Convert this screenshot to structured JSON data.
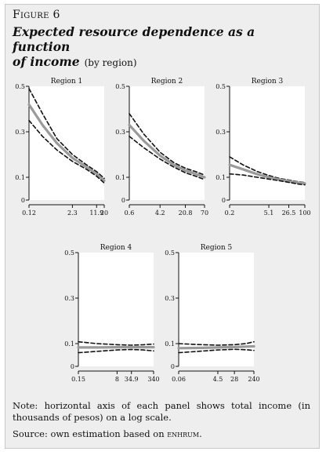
{
  "figure": {
    "label": "Figure 6",
    "title_line1": "Expected resource dependence as a function",
    "title_line2": "of income",
    "title_sub": "(by region)",
    "note": "Note: horizontal axis of each panel shows total income (in thousands of pesos) on a log scale.",
    "source_prefix": "Source: own estimation based on ",
    "source_name": "enhrum",
    "source_suffix": "."
  },
  "chart_data": [
    {
      "type": "line",
      "title": "Region 1",
      "x_scale": "log",
      "xlim": [
        0.12,
        20
      ],
      "xticks": [
        0.12,
        2.3,
        11.9,
        20
      ],
      "xtick_labels": [
        "0.12",
        "2.3",
        "11.9",
        "20"
      ],
      "ylim": [
        0,
        0.5
      ],
      "yticks": [
        0,
        0.1,
        0.3,
        0.5
      ],
      "ytick_labels": [
        "0",
        "0.1",
        "0.3",
        "0.5"
      ],
      "series": [
        {
          "style": "upper-ci",
          "x": [
            0.12,
            0.3,
            0.8,
            2.3,
            6,
            11.9,
            20
          ],
          "y": [
            0.49,
            0.38,
            0.27,
            0.2,
            0.155,
            0.125,
            0.095
          ]
        },
        {
          "style": "estimate",
          "x": [
            0.12,
            0.3,
            0.8,
            2.3,
            6,
            11.9,
            20
          ],
          "y": [
            0.42,
            0.33,
            0.25,
            0.185,
            0.145,
            0.115,
            0.085
          ]
        },
        {
          "style": "lower-ci",
          "x": [
            0.12,
            0.3,
            0.8,
            2.3,
            6,
            11.9,
            20
          ],
          "y": [
            0.35,
            0.28,
            0.22,
            0.17,
            0.135,
            0.105,
            0.075
          ]
        }
      ]
    },
    {
      "type": "line",
      "title": "Region 2",
      "x_scale": "log",
      "xlim": [
        0.6,
        70
      ],
      "xticks": [
        0.6,
        4.2,
        20.8,
        70
      ],
      "xtick_labels": [
        "0.6",
        "4.2",
        "20.8",
        "70"
      ],
      "ylim": [
        0,
        0.5
      ],
      "yticks": [
        0,
        0.1,
        0.3,
        0.5
      ],
      "ytick_labels": [
        "0",
        "0.1",
        "0.3",
        "0.5"
      ],
      "series": [
        {
          "style": "upper-ci",
          "x": [
            0.6,
            1.5,
            4.2,
            10,
            20.8,
            40,
            70
          ],
          "y": [
            0.38,
            0.29,
            0.21,
            0.165,
            0.14,
            0.125,
            0.11
          ]
        },
        {
          "style": "estimate",
          "x": [
            0.6,
            1.5,
            4.2,
            10,
            20.8,
            40,
            70
          ],
          "y": [
            0.33,
            0.26,
            0.195,
            0.155,
            0.13,
            0.115,
            0.1
          ]
        },
        {
          "style": "lower-ci",
          "x": [
            0.6,
            1.5,
            4.2,
            10,
            20.8,
            40,
            70
          ],
          "y": [
            0.28,
            0.23,
            0.18,
            0.145,
            0.12,
            0.105,
            0.09
          ]
        }
      ]
    },
    {
      "type": "line",
      "title": "Region 3",
      "x_scale": "log",
      "xlim": [
        0.2,
        100
      ],
      "xticks": [
        0.2,
        5.1,
        26.5,
        100
      ],
      "xtick_labels": [
        "0.2",
        "5.1",
        "26.5",
        "100"
      ],
      "ylim": [
        0,
        0.5
      ],
      "yticks": [
        0,
        0.1,
        0.3,
        0.5
      ],
      "ytick_labels": [
        "0",
        "0.1",
        "0.3",
        "0.5"
      ],
      "series": [
        {
          "style": "upper-ci",
          "x": [
            0.2,
            0.6,
            2,
            5.1,
            12,
            26.5,
            60,
            100
          ],
          "y": [
            0.19,
            0.155,
            0.125,
            0.108,
            0.095,
            0.088,
            0.08,
            0.077
          ]
        },
        {
          "style": "estimate",
          "x": [
            0.2,
            0.6,
            2,
            5.1,
            12,
            26.5,
            60,
            100
          ],
          "y": [
            0.155,
            0.135,
            0.113,
            0.1,
            0.09,
            0.083,
            0.076,
            0.073
          ]
        },
        {
          "style": "lower-ci",
          "x": [
            0.2,
            0.6,
            2,
            5.1,
            12,
            26.5,
            60,
            100
          ],
          "y": [
            0.115,
            0.11,
            0.1,
            0.092,
            0.085,
            0.078,
            0.07,
            0.067
          ]
        }
      ]
    },
    {
      "type": "line",
      "title": "Region 4",
      "x_scale": "log",
      "xlim": [
        0.15,
        340
      ],
      "xticks": [
        0.15,
        8,
        34.9,
        340
      ],
      "xtick_labels": [
        "0.15",
        "8",
        "34.9",
        "340"
      ],
      "ylim": [
        0,
        0.5
      ],
      "yticks": [
        0,
        0.1,
        0.3,
        0.5
      ],
      "ytick_labels": [
        "0",
        "0.1",
        "0.3",
        "0.5"
      ],
      "series": [
        {
          "style": "upper-ci",
          "x": [
            0.15,
            1,
            8,
            34.9,
            120,
            340
          ],
          "y": [
            0.108,
            0.1,
            0.095,
            0.093,
            0.095,
            0.098
          ]
        },
        {
          "style": "estimate",
          "x": [
            0.15,
            1,
            8,
            34.9,
            120,
            340
          ],
          "y": [
            0.083,
            0.083,
            0.084,
            0.084,
            0.084,
            0.084
          ]
        },
        {
          "style": "lower-ci",
          "x": [
            0.15,
            1,
            8,
            34.9,
            120,
            340
          ],
          "y": [
            0.06,
            0.066,
            0.072,
            0.074,
            0.072,
            0.068
          ]
        }
      ]
    },
    {
      "type": "line",
      "title": "Region 5",
      "x_scale": "log",
      "xlim": [
        0.06,
        240
      ],
      "xticks": [
        0.06,
        4.5,
        28,
        240
      ],
      "xtick_labels": [
        "0.06",
        "4.5",
        "28",
        "240"
      ],
      "ylim": [
        0,
        0.5
      ],
      "yticks": [
        0,
        0.1,
        0.3,
        0.5
      ],
      "ytick_labels": [
        "0",
        "0.1",
        "0.3",
        "0.5"
      ],
      "series": [
        {
          "style": "upper-ci",
          "x": [
            0.06,
            0.5,
            4.5,
            28,
            100,
            240
          ],
          "y": [
            0.1,
            0.096,
            0.093,
            0.095,
            0.1,
            0.108
          ]
        },
        {
          "style": "estimate",
          "x": [
            0.06,
            0.5,
            4.5,
            28,
            100,
            240
          ],
          "y": [
            0.08,
            0.081,
            0.083,
            0.085,
            0.087,
            0.088
          ]
        },
        {
          "style": "lower-ci",
          "x": [
            0.06,
            0.5,
            4.5,
            28,
            100,
            240
          ],
          "y": [
            0.06,
            0.066,
            0.072,
            0.075,
            0.073,
            0.07
          ]
        }
      ]
    }
  ],
  "colors": {
    "ci_line": "#111111",
    "estimate_line": "#9a9a9a",
    "panel_background": "#ffffff",
    "axis": "#111111"
  }
}
